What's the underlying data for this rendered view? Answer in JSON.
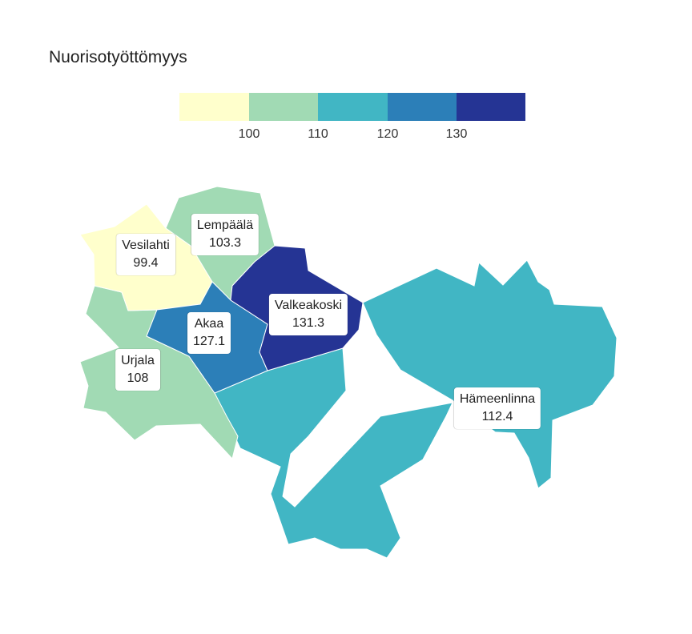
{
  "title": "Nuorisotyöttömyys",
  "legend": {
    "colors": [
      "#ffffcc",
      "#a1dab4",
      "#41b6c4",
      "#2c7fb8",
      "#253494"
    ],
    "ticks": [
      "100",
      "110",
      "120",
      "130"
    ]
  },
  "regions": [
    {
      "name": "Vesilahti",
      "value": "99.4",
      "color": "#ffffcc"
    },
    {
      "name": "Lempäälä",
      "value": "103.3",
      "color": "#a1dab4"
    },
    {
      "name": "Valkeakoski",
      "value": "131.3",
      "color": "#253494"
    },
    {
      "name": "Akaa",
      "value": "127.1",
      "color": "#2c7fb8"
    },
    {
      "name": "Urjala",
      "value": "108",
      "color": "#a1dab4"
    },
    {
      "name": "Hämeenlinna",
      "value": "112.4",
      "color": "#41b6c4"
    }
  ]
}
